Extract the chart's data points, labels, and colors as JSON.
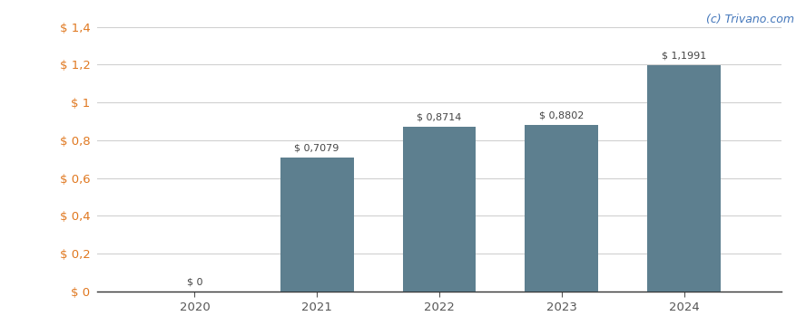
{
  "categories": [
    2020,
    2021,
    2022,
    2023,
    2024
  ],
  "values": [
    0,
    0.7079,
    0.8714,
    0.8802,
    1.1991
  ],
  "bar_color": "#5d7f8f",
  "bar_width": 0.6,
  "ylim": [
    0,
    1.4
  ],
  "yticks": [
    0,
    0.2,
    0.4,
    0.6,
    0.8,
    1.0,
    1.2,
    1.4
  ],
  "ytick_labels": [
    "$ 0",
    "$ 0,2",
    "$ 0,4",
    "$ 0,6",
    "$ 0,8",
    "$ 1",
    "$ 1,2",
    "$ 1,4"
  ],
  "annotations": [
    "$ 0",
    "$ 0,7079",
    "$ 0,8714",
    "$ 0,8802",
    "$ 1,1991"
  ],
  "watermark": "(c) Trivano.com",
  "background_color": "#ffffff",
  "grid_color": "#d0d0d0",
  "axis_label_color": "#e07820",
  "tick_label_color": "#555555",
  "watermark_color": "#4477bb"
}
